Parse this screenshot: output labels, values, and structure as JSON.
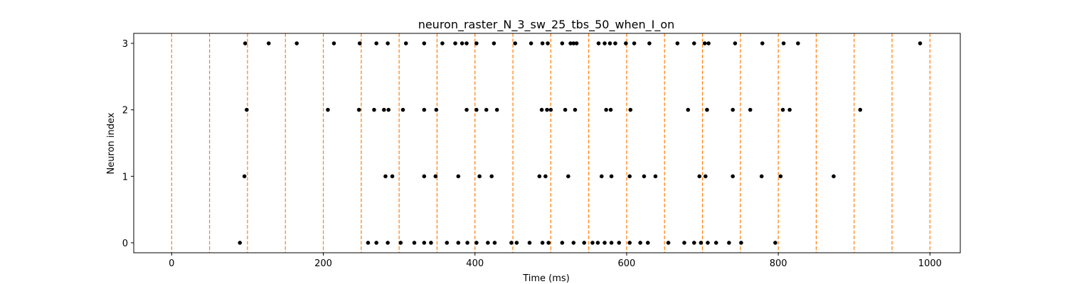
{
  "chart_data": {
    "type": "scatter",
    "title": "neuron_raster_N_3_sw_25_tbs_50_when_I_on",
    "xlabel": "Time (ms)",
    "ylabel": "Neuron index",
    "xlim": [
      -50,
      1040
    ],
    "ylim": [
      -0.15,
      3.15
    ],
    "xticks": [
      0,
      200,
      400,
      600,
      800,
      1000
    ],
    "yticks": [
      0,
      1,
      2,
      3
    ],
    "grid": false,
    "marker_color": "#000000",
    "vline_color": "#ff7f0e",
    "vline_style": "dashed",
    "vlines": [
      0,
      50,
      100,
      150,
      200,
      250,
      300,
      350,
      400,
      450,
      500,
      550,
      600,
      650,
      700,
      750,
      800,
      850,
      900,
      950,
      1000
    ],
    "series": [
      {
        "neuron": 3,
        "spikes": [
          97,
          128,
          165,
          214,
          248,
          270,
          285,
          309,
          333,
          357,
          374,
          383,
          389,
          402,
          425,
          453,
          474,
          489,
          496,
          515,
          526,
          530,
          534,
          563,
          571,
          578,
          585,
          599,
          610,
          630,
          667,
          689,
          703,
          708,
          743,
          779,
          807,
          826,
          987
        ]
      },
      {
        "neuron": 2,
        "spikes": [
          99,
          206,
          247,
          267,
          280,
          286,
          305,
          333,
          349,
          389,
          402,
          415,
          429,
          488,
          495,
          500,
          519,
          532,
          573,
          579,
          605,
          681,
          706,
          740,
          763,
          806,
          815,
          908
        ]
      },
      {
        "neuron": 1,
        "spikes": [
          96,
          282,
          291,
          333,
          348,
          378,
          406,
          422,
          485,
          493,
          523,
          567,
          580,
          604,
          623,
          638,
          696,
          704,
          740,
          778,
          803,
          873
        ]
      },
      {
        "neuron": 0,
        "spikes": [
          90,
          259,
          270,
          285,
          302,
          320,
          333,
          342,
          363,
          378,
          390,
          402,
          417,
          426,
          448,
          455,
          472,
          489,
          497,
          515,
          530,
          544,
          555,
          562,
          571,
          580,
          590,
          604,
          618,
          628,
          655,
          676,
          689,
          698,
          707,
          718,
          735,
          751,
          796
        ]
      }
    ]
  }
}
